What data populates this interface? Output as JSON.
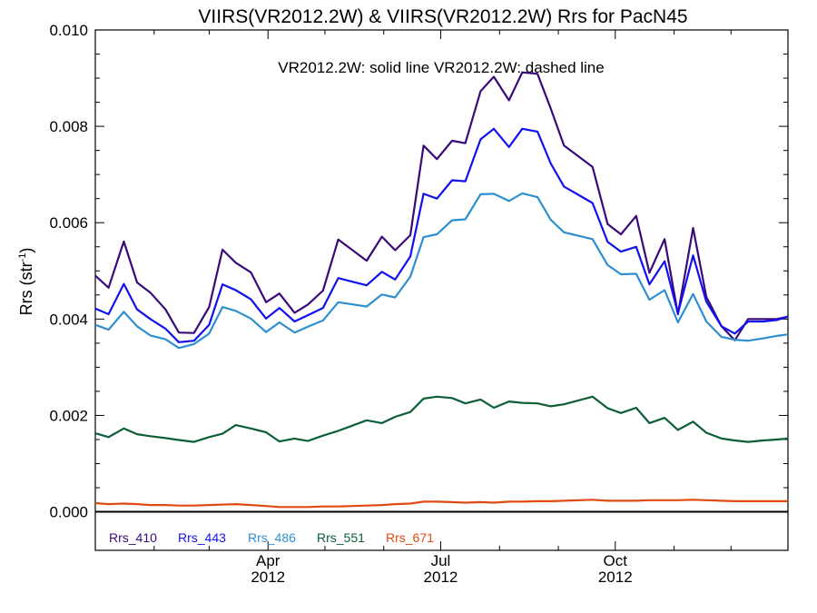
{
  "chart_data": {
    "type": "line",
    "title": "VIIRS(VR2012.2W) & VIIRS(VR2012.2W)  Rrs for PacN45",
    "annotation": "VR2012.2W: solid line   VR2012.2W: dashed line",
    "ylabel": "Rrs (str",
    "ylabel_sup": "-1",
    "ylabel_end": ")",
    "ylim": [
      -0.0008,
      0.01
    ],
    "y_ticks": [
      0.0,
      0.002,
      0.004,
      0.006,
      0.008,
      0.01
    ],
    "y_tick_labels": [
      "0.000",
      "0.002",
      "0.004",
      "0.006",
      "0.008",
      "0.010"
    ],
    "xlim": [
      "2012-01-01",
      "2012-12-31"
    ],
    "x_ticks": [
      {
        "date": "2012-04-01",
        "label": "Apr",
        "year": "2012"
      },
      {
        "date": "2012-07-01",
        "label": "Jul",
        "year": "2012"
      },
      {
        "date": "2012-10-01",
        "label": "Oct",
        "year": "2012"
      }
    ],
    "x": [
      "2012-01-01",
      "2012-01-08",
      "2012-01-16",
      "2012-01-23",
      "2012-01-30",
      "2012-02-07",
      "2012-02-14",
      "2012-02-22",
      "2012-03-01",
      "2012-03-08",
      "2012-03-15",
      "2012-03-23",
      "2012-03-31",
      "2012-04-07",
      "2012-04-15",
      "2012-04-22",
      "2012-04-30",
      "2012-05-08",
      "2012-05-23",
      "2012-05-31",
      "2012-06-07",
      "2012-06-15",
      "2012-06-22",
      "2012-06-29",
      "2012-07-07",
      "2012-07-14",
      "2012-07-22",
      "2012-07-29",
      "2012-08-06",
      "2012-08-13",
      "2012-08-21",
      "2012-08-28",
      "2012-09-04",
      "2012-09-19",
      "2012-09-27",
      "2012-10-04",
      "2012-10-12",
      "2012-10-19",
      "2012-10-27",
      "2012-11-03",
      "2012-11-11",
      "2012-11-18",
      "2012-11-26",
      "2012-12-03",
      "2012-12-10",
      "2012-12-18",
      "2012-12-25",
      "2012-12-31"
    ],
    "series": [
      {
        "name": "Rrs_410",
        "color": "#3a0a7a",
        "values": [
          0.0049,
          0.00465,
          0.00561,
          0.00476,
          0.00455,
          0.0042,
          0.00372,
          0.00371,
          0.00425,
          0.00544,
          0.00517,
          0.00497,
          0.00435,
          0.00453,
          0.00413,
          0.0043,
          0.00459,
          0.00565,
          0.00521,
          0.00571,
          0.00543,
          0.00574,
          0.0076,
          0.00732,
          0.0077,
          0.00765,
          0.00873,
          0.00903,
          0.00854,
          0.00912,
          0.00909,
          0.00837,
          0.0076,
          0.00716,
          0.00597,
          0.00576,
          0.00614,
          0.00496,
          0.00566,
          0.0041,
          0.00589,
          0.00446,
          0.00385,
          0.00356,
          0.004,
          0.004,
          0.004,
          0.00405
        ]
      },
      {
        "name": "Rrs_443",
        "color": "#1010f0",
        "values": [
          0.00422,
          0.0041,
          0.00473,
          0.0042,
          0.004,
          0.0038,
          0.00352,
          0.00355,
          0.00388,
          0.00472,
          0.0046,
          0.00441,
          0.00401,
          0.00423,
          0.00395,
          0.00408,
          0.00423,
          0.00485,
          0.0047,
          0.00498,
          0.00482,
          0.0053,
          0.0066,
          0.0065,
          0.00688,
          0.00686,
          0.00773,
          0.00795,
          0.00757,
          0.00795,
          0.00789,
          0.00723,
          0.00675,
          0.00641,
          0.0056,
          0.0054,
          0.0055,
          0.00472,
          0.0052,
          0.00412,
          0.00532,
          0.00436,
          0.00385,
          0.0037,
          0.00395,
          0.00395,
          0.00398,
          0.00405
        ]
      },
      {
        "name": "Rrs_486",
        "color": "#2e8fd0",
        "values": [
          0.00388,
          0.00378,
          0.00415,
          0.00385,
          0.00366,
          0.00358,
          0.0034,
          0.00348,
          0.0037,
          0.00425,
          0.00417,
          0.00401,
          0.00373,
          0.00393,
          0.00372,
          0.00384,
          0.00397,
          0.00435,
          0.00426,
          0.00451,
          0.00445,
          0.00488,
          0.0057,
          0.00576,
          0.00605,
          0.00607,
          0.00659,
          0.0066,
          0.00645,
          0.00661,
          0.00653,
          0.00606,
          0.0058,
          0.00566,
          0.00512,
          0.00493,
          0.00494,
          0.0044,
          0.0046,
          0.00393,
          0.00452,
          0.00395,
          0.00363,
          0.00357,
          0.00355,
          0.0036,
          0.00365,
          0.00368
        ]
      },
      {
        "name": "Rrs_551",
        "color": "#0b5e36",
        "values": [
          0.00163,
          0.00155,
          0.00173,
          0.00161,
          0.00157,
          0.00153,
          0.00149,
          0.00145,
          0.00155,
          0.00162,
          0.0018,
          0.00173,
          0.00165,
          0.00146,
          0.00152,
          0.00147,
          0.00158,
          0.00168,
          0.0019,
          0.00184,
          0.00197,
          0.00207,
          0.00235,
          0.00239,
          0.00236,
          0.00225,
          0.00233,
          0.00216,
          0.00229,
          0.00226,
          0.00225,
          0.00219,
          0.00223,
          0.00239,
          0.00215,
          0.00205,
          0.00216,
          0.00184,
          0.00195,
          0.0017,
          0.00187,
          0.00164,
          0.00152,
          0.00148,
          0.00145,
          0.00148,
          0.0015,
          0.00152
        ]
      },
      {
        "name": "Rrs_671",
        "color": "#e04a10",
        "values": [
          0.00018,
          0.00016,
          0.00017,
          0.00016,
          0.00014,
          0.00014,
          0.00013,
          0.00013,
          0.00014,
          0.00015,
          0.00016,
          0.00014,
          0.00012,
          0.0001,
          0.0001,
          0.0001,
          0.00011,
          0.00011,
          0.00013,
          0.00014,
          0.00016,
          0.00017,
          0.00021,
          0.00021,
          0.0002,
          0.00019,
          0.0002,
          0.00019,
          0.00021,
          0.00021,
          0.00022,
          0.00022,
          0.00023,
          0.00025,
          0.00023,
          0.00023,
          0.00023,
          0.00024,
          0.00024,
          0.00024,
          0.00025,
          0.00024,
          0.00023,
          0.00022,
          0.00022,
          0.00022,
          0.00022,
          0.00022
        ]
      }
    ],
    "zero_line": true,
    "grid": false,
    "legend_position": "bottom-left inside"
  }
}
